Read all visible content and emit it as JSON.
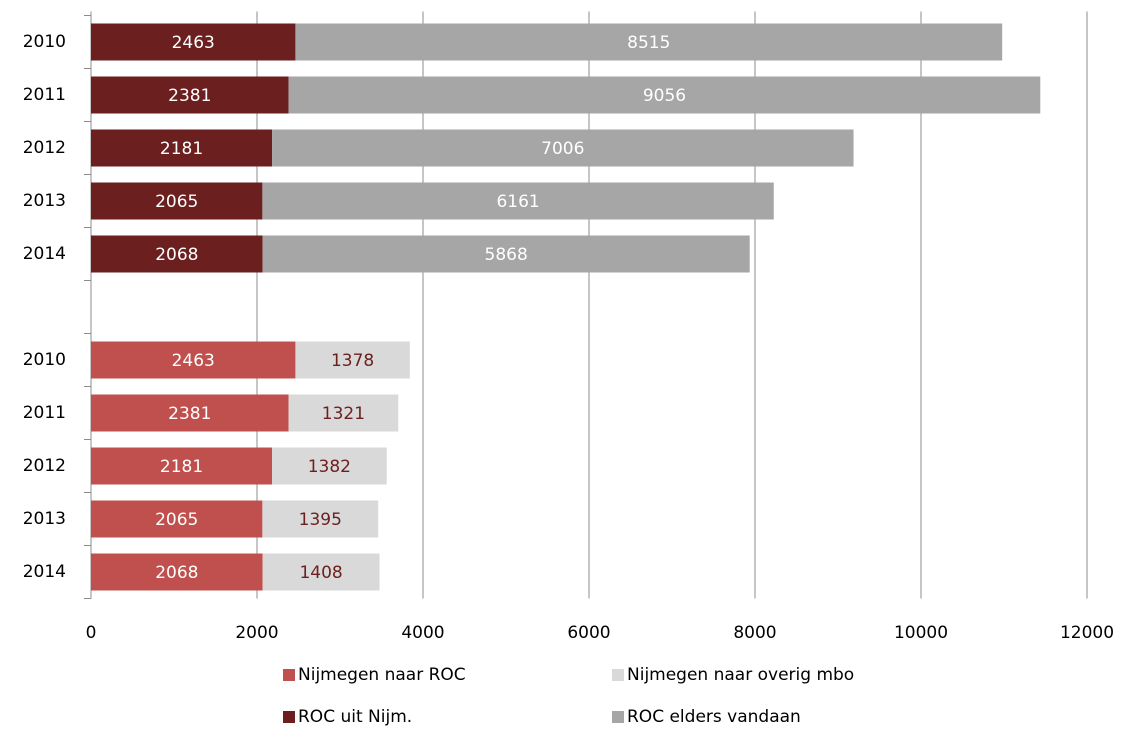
{
  "chart_data": {
    "type": "stacked-bar-horizontal",
    "categories": [
      "2010",
      "2011",
      "2012",
      "2013",
      "2014",
      null,
      "2010",
      "2011",
      "2012",
      "2013",
      "2014"
    ],
    "series": [
      {
        "name": "Nijmegen naar ROC",
        "color": "#c0504d",
        "values": [
          null,
          null,
          null,
          null,
          null,
          null,
          2463,
          2381,
          2181,
          2065,
          2068
        ]
      },
      {
        "name": "Nijmegen naar overig mbo",
        "color": "#d9d9d9",
        "values": [
          null,
          null,
          null,
          null,
          null,
          null,
          1378,
          1321,
          1382,
          1395,
          1408
        ]
      },
      {
        "name": "ROC uit Nijm.",
        "color": "#6b1f1f",
        "values": [
          2463,
          2381,
          2181,
          2065,
          2068,
          null,
          null,
          null,
          null,
          null,
          null
        ]
      },
      {
        "name": "ROC elders vandaan",
        "color": "#a6a6a6",
        "values": [
          8515,
          9056,
          7006,
          6161,
          5868,
          null,
          null,
          null,
          null,
          null,
          null
        ]
      }
    ],
    "xlim": [
      0,
      12000
    ],
    "xticks": [
      0,
      2000,
      4000,
      6000,
      8000,
      10000,
      12000
    ],
    "grid": true,
    "legend": "bottom"
  }
}
